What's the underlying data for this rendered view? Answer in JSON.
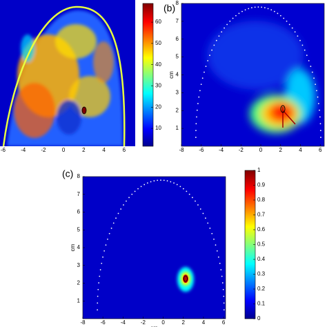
{
  "chart_data": [
    {
      "type": "heatmap",
      "xlim": [
        -6.3,
        7.1
      ],
      "xticks": [
        -6,
        -4,
        -2,
        0,
        2,
        4,
        6
      ],
      "colorbar": {
        "lim": [
          1.6,
          68.8
        ],
        "ticks": [
          10,
          20,
          30,
          40,
          50,
          60
        ]
      }
    },
    {
      "type": "heatmap",
      "label": "(b)",
      "ylabel": "cm",
      "xlim": [
        -8,
        6.4
      ],
      "ylim": [
        0,
        8
      ],
      "xticks": [
        -8,
        -6,
        -4,
        -2,
        0,
        2,
        4,
        6
      ],
      "yticks": [
        1,
        2,
        3,
        4,
        5,
        6,
        7,
        8
      ]
    },
    {
      "type": "heatmap",
      "label": "(c)",
      "xlabel": "cm",
      "ylabel": "cm",
      "xlim": [
        -8,
        6.2
      ],
      "ylim": [
        0,
        8
      ],
      "xticks": [
        -8,
        -6,
        -4,
        -2,
        0,
        2,
        4,
        6
      ],
      "yticks": [
        1,
        2,
        3,
        4,
        5,
        6,
        7,
        8
      ],
      "colorbar": {
        "lim": [
          0,
          1
        ],
        "ticks": [
          0,
          0.1,
          0.2,
          0.3,
          0.4,
          0.5,
          0.6,
          0.7,
          0.8,
          0.9,
          1
        ]
      }
    }
  ]
}
